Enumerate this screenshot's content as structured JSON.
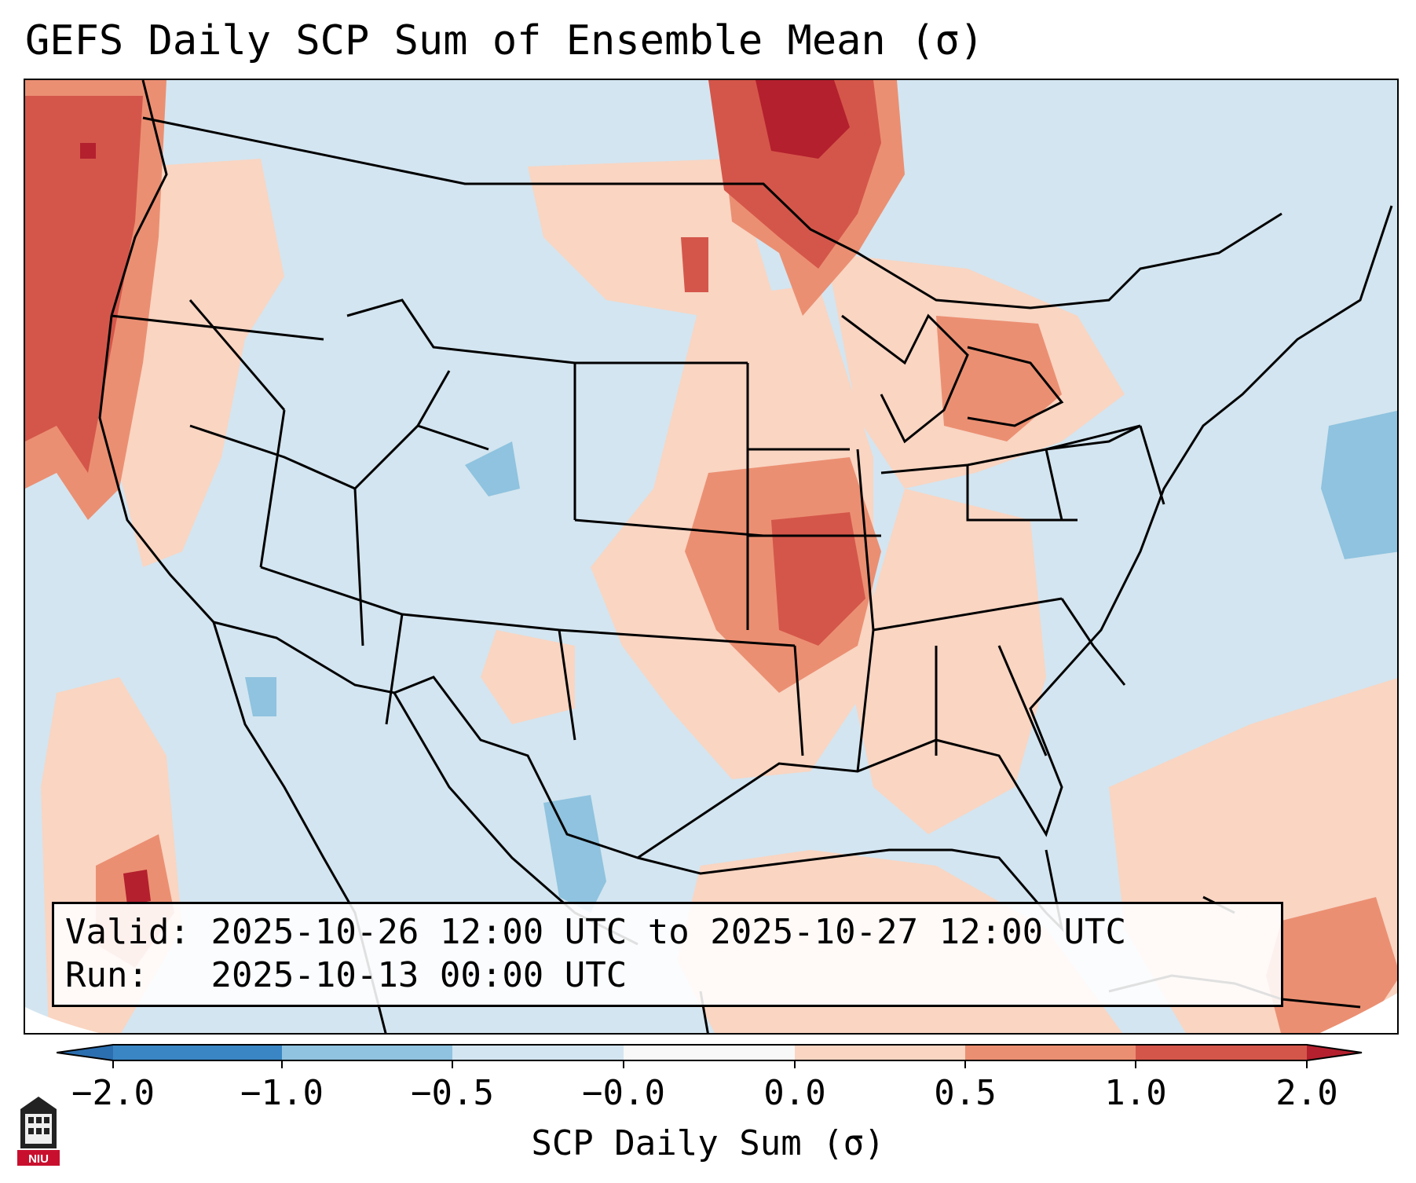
{
  "title": "GEFS Daily SCP Sum of Ensemble Mean (σ)",
  "info": {
    "valid_label": "Valid:",
    "valid_value": "2025-10-26 12:00 UTC to 2025-10-27 12:00 UTC",
    "run_label": "Run:",
    "run_value": "2025-10-13 00:00 UTC"
  },
  "colorbar": {
    "label": "SCP Daily Sum (σ)",
    "ticks": [
      "−2.0",
      "−1.0",
      "−0.5",
      "−0.0",
      "0.0",
      "0.5",
      "1.0",
      "2.0"
    ],
    "bin_colors": [
      "#3a86c4",
      "#8fc3df",
      "#d3e5f0",
      "#f8f8f8",
      "#f9d5c2",
      "#eb8f72",
      "#d4564a"
    ],
    "under_color": "#2c6fb0",
    "over_color": "#b4202e"
  },
  "map": {
    "background_color": "#d3e5f0",
    "ocean_mask_color": "#ffffff",
    "anomalies": [
      {
        "region": "Pacific Northwest coast",
        "level": "1.0 to 2.0"
      },
      {
        "region": "Northern Minnesota / Ontario",
        "level": "above 2.0"
      },
      {
        "region": "Missouri / Arkansas",
        "level": "1.0 to 2.0"
      },
      {
        "region": "Great Lakes",
        "level": "0.5 to 1.0"
      },
      {
        "region": "Western Gulf / Atlantic",
        "level": "0.0 to 0.5"
      },
      {
        "region": "Colorado / Northern Mexico",
        "level": "-1.0 to -0.5"
      }
    ]
  },
  "logo": {
    "text": "NIU"
  }
}
